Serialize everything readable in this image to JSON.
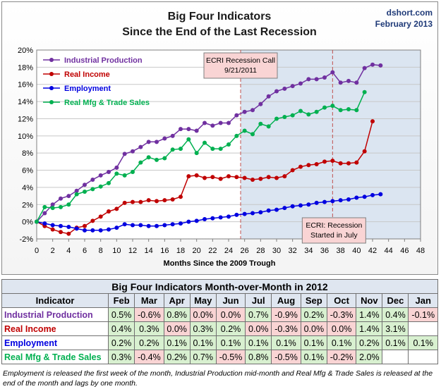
{
  "chart_data": [
    {
      "type": "line",
      "title": "Big Four Indicators",
      "subtitle": "Since the End of the Last Recession",
      "brand": "dshort.com",
      "date": "February 2013",
      "xlabel": "Months Since the 2009 Trough",
      "ylabel": "",
      "xlim": [
        0,
        48
      ],
      "ylim": [
        -2,
        20
      ],
      "xticks": [
        "0",
        "2",
        "4",
        "6",
        "8",
        "10",
        "12",
        "14",
        "16",
        "18",
        "20",
        "22",
        "24",
        "26",
        "28",
        "30",
        "32",
        "34",
        "36",
        "38",
        "40",
        "42",
        "44",
        "46",
        "48"
      ],
      "yticks": [
        "-2%",
        "0%",
        "2%",
        "4%",
        "6%",
        "8%",
        "10%",
        "12%",
        "14%",
        "16%",
        "18%",
        "20%"
      ],
      "legend_position": "top-left",
      "shaded_region": {
        "from": 25.5,
        "to": 48,
        "color": "#dbe5f1"
      },
      "annotations": [
        {
          "text_lines": [
            "ECRI Recession Call",
            "9/21/2011"
          ],
          "x": 25.5,
          "color": "#c0504d"
        },
        {
          "text_lines": [
            "ECRI: Recession",
            "Started in July"
          ],
          "x": 37,
          "color": "#c0504d"
        }
      ],
      "series": [
        {
          "name": "Industrial Production",
          "color": "#7030a0",
          "x": [
            0,
            1,
            2,
            3,
            4,
            5,
            6,
            7,
            8,
            9,
            10,
            11,
            12,
            13,
            14,
            15,
            16,
            17,
            18,
            19,
            20,
            21,
            22,
            23,
            24,
            25,
            26,
            27,
            28,
            29,
            30,
            31,
            32,
            33,
            34,
            35,
            36,
            37,
            38,
            39,
            40,
            41,
            42,
            43
          ],
          "values": [
            0,
            1.0,
            2.0,
            2.7,
            3.0,
            3.6,
            4.3,
            4.9,
            5.4,
            5.8,
            6.3,
            7.9,
            8.2,
            8.7,
            9.3,
            9.3,
            9.7,
            10.0,
            10.8,
            10.8,
            10.6,
            11.5,
            11.2,
            11.5,
            11.5,
            12.4,
            12.8,
            13.0,
            13.7,
            14.6,
            15.2,
            15.5,
            15.8,
            16.1,
            16.6,
            16.6,
            16.8,
            17.4,
            16.2,
            16.4,
            16.2,
            17.9,
            18.3,
            18.2
          ]
        },
        {
          "name": "Real Income",
          "color": "#c00000",
          "x": [
            0,
            1,
            2,
            3,
            4,
            5,
            6,
            7,
            8,
            9,
            10,
            11,
            12,
            13,
            14,
            15,
            16,
            17,
            18,
            19,
            20,
            21,
            22,
            23,
            24,
            25,
            26,
            27,
            28,
            29,
            30,
            31,
            32,
            33,
            34,
            35,
            36,
            37,
            38,
            39,
            40,
            41,
            42
          ],
          "values": [
            0,
            -0.5,
            -0.9,
            -1.2,
            -1.4,
            -0.7,
            -0.5,
            0.1,
            0.6,
            1.2,
            1.5,
            2.2,
            2.3,
            2.3,
            2.5,
            2.4,
            2.5,
            2.6,
            2.9,
            5.3,
            5.4,
            5.1,
            5.2,
            5.0,
            5.3,
            5.2,
            5.1,
            4.9,
            5.0,
            5.2,
            5.1,
            5.3,
            6.0,
            6.4,
            6.6,
            6.7,
            7.0,
            7.1,
            6.8,
            6.8,
            6.9,
            8.2,
            11.7
          ]
        },
        {
          "name": "Employment",
          "color": "#0000e0",
          "x": [
            0,
            1,
            2,
            3,
            4,
            5,
            6,
            7,
            8,
            9,
            10,
            11,
            12,
            13,
            14,
            15,
            16,
            17,
            18,
            19,
            20,
            21,
            22,
            23,
            24,
            25,
            26,
            27,
            28,
            29,
            30,
            31,
            32,
            33,
            34,
            35,
            36,
            37,
            38,
            39,
            40,
            41,
            42,
            43
          ],
          "values": [
            0,
            -0.2,
            -0.4,
            -0.5,
            -0.6,
            -0.8,
            -1.0,
            -1.0,
            -1.0,
            -0.9,
            -0.7,
            -0.3,
            -0.4,
            -0.4,
            -0.5,
            -0.5,
            -0.4,
            -0.3,
            -0.2,
            0.0,
            0.1,
            0.3,
            0.4,
            0.5,
            0.6,
            0.8,
            0.9,
            1.0,
            1.1,
            1.3,
            1.4,
            1.6,
            1.8,
            1.9,
            2.0,
            2.2,
            2.3,
            2.4,
            2.5,
            2.6,
            2.8,
            2.9,
            3.1,
            3.2
          ]
        },
        {
          "name": "Real Mfg & Trade Sales",
          "color": "#00b050",
          "x": [
            0,
            1,
            2,
            3,
            4,
            5,
            6,
            7,
            8,
            9,
            10,
            11,
            12,
            13,
            14,
            15,
            16,
            17,
            18,
            19,
            20,
            21,
            22,
            23,
            24,
            25,
            26,
            27,
            28,
            29,
            30,
            31,
            32,
            33,
            34,
            35,
            36,
            37,
            38,
            39,
            40,
            41
          ],
          "values": [
            0,
            1.7,
            1.6,
            1.7,
            2.0,
            3.2,
            3.5,
            3.8,
            4.1,
            4.5,
            5.6,
            5.4,
            5.8,
            6.9,
            7.5,
            7.2,
            7.4,
            8.4,
            8.5,
            9.6,
            8.0,
            9.2,
            8.5,
            8.5,
            9.0,
            10.0,
            10.6,
            10.2,
            11.4,
            11.1,
            12.0,
            12.2,
            12.4,
            12.9,
            12.5,
            12.8,
            13.3,
            13.5,
            13.0,
            13.1,
            13.0,
            15.1
          ]
        }
      ]
    },
    {
      "type": "table",
      "title": "Big Four Indicators Month-over-Month in 2012",
      "columns": [
        "Indicator",
        "Feb",
        "Mar",
        "Apr",
        "May",
        "Jun",
        "Jul",
        "Aug",
        "Sep",
        "Oct",
        "Nov",
        "Dec",
        "Jan"
      ],
      "rows": [
        {
          "label": "Industrial Production",
          "color": "#7030a0",
          "values": [
            "0.5%",
            "-0.6%",
            "0.8%",
            "0.0%",
            "0.0%",
            "0.7%",
            "-0.9%",
            "0.2%",
            "-0.3%",
            "1.4%",
            "0.4%",
            "-0.1%"
          ],
          "signs": [
            "pos",
            "neg",
            "pos",
            "neg",
            "neg",
            "pos",
            "neg",
            "pos",
            "neg",
            "pos",
            "pos",
            "neg"
          ]
        },
        {
          "label": "Real Income",
          "color": "#c00000",
          "values": [
            "0.4%",
            "0.3%",
            "0.0%",
            "0.3%",
            "0.2%",
            "0.0%",
            "-0.3%",
            "0.0%",
            "0.0%",
            "1.4%",
            "3.1%",
            ""
          ],
          "signs": [
            "pos",
            "pos",
            "neg",
            "pos",
            "pos",
            "neg",
            "neg",
            "neg",
            "neg",
            "pos",
            "pos",
            "empty"
          ]
        },
        {
          "label": "Employment",
          "color": "#0000e0",
          "values": [
            "0.2%",
            "0.2%",
            "0.1%",
            "0.1%",
            "0.1%",
            "0.1%",
            "0.1%",
            "0.1%",
            "0.1%",
            "0.2%",
            "0.1%",
            "0.1%"
          ],
          "signs": [
            "pos",
            "pos",
            "pos",
            "pos",
            "pos",
            "pos",
            "pos",
            "pos",
            "pos",
            "pos",
            "pos",
            "pos"
          ]
        },
        {
          "label": "Real Mfg & Trade Sales",
          "color": "#00b050",
          "values": [
            "0.3%",
            "-0.4%",
            "0.2%",
            "0.7%",
            "-0.5%",
            "0.8%",
            "-0.5%",
            "0.1%",
            "-0.2%",
            "2.0%",
            "",
            ""
          ],
          "signs": [
            "pos",
            "neg",
            "pos",
            "pos",
            "neg",
            "pos",
            "neg",
            "pos",
            "neg",
            "pos",
            "empty",
            "empty"
          ]
        }
      ]
    }
  ],
  "footnote": "Employment is released the first week of the month, Industrial Production mid-month and Real Mfg & Trade Sales is released at the end of the month and lags by one month."
}
